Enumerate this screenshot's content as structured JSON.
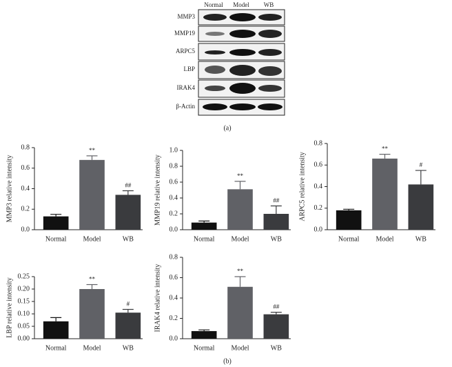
{
  "blot": {
    "lanes": [
      "Normal",
      "Model",
      "WB"
    ],
    "rows": [
      "MMP3",
      "MMP19",
      "ARPC5",
      "LBP",
      "IRAK4",
      "β-Actin"
    ],
    "label": "(a)"
  },
  "panel_b_label": "(b)",
  "chart_data": [
    {
      "type": "bar",
      "y_label": "MMP3 relative intensity",
      "categories": [
        "Normal",
        "Model",
        "WB"
      ],
      "values": [
        0.13,
        0.68,
        0.34
      ],
      "errors": [
        0.02,
        0.04,
        0.04
      ],
      "annotations": [
        null,
        "**",
        "##"
      ],
      "colors": [
        "#111111",
        "#606166",
        "#3a3b3e"
      ],
      "ylim": [
        0,
        0.8
      ],
      "yticks": [
        {
          "value": 0,
          "label": "0.0"
        },
        0.2,
        0.4,
        0.6,
        0.8
      ]
    },
    {
      "type": "bar",
      "y_label": "MMP19 relative intensity",
      "categories": [
        "Normal",
        "Model",
        "WB"
      ],
      "values": [
        0.09,
        0.51,
        0.2
      ],
      "errors": [
        0.02,
        0.1,
        0.1
      ],
      "annotations": [
        null,
        "**",
        "##"
      ],
      "colors": [
        "#111111",
        "#606166",
        "#3a3b3e"
      ],
      "ylim": [
        0,
        1.0
      ],
      "yticks": [
        {
          "value": 0,
          "label": "0.0"
        },
        0.2,
        0.4,
        0.6,
        0.8,
        {
          "value": 1,
          "label": "1.0"
        }
      ]
    },
    {
      "type": "bar",
      "y_label": "ARPC5 relative intensity",
      "categories": [
        "Normal",
        "Model",
        "WB"
      ],
      "values": [
        0.18,
        0.66,
        0.42
      ],
      "errors": [
        0.01,
        0.04,
        0.13
      ],
      "annotations": [
        null,
        "**",
        "#"
      ],
      "colors": [
        "#111111",
        "#606166",
        "#3a3b3e"
      ],
      "ylim": [
        0,
        0.8
      ],
      "yticks": [
        {
          "value": 0,
          "label": "0.0"
        },
        0.2,
        0.4,
        0.6,
        0.8
      ]
    },
    {
      "type": "bar",
      "y_label": "LBP relative intensity",
      "categories": [
        "Normal",
        "Model",
        "WB"
      ],
      "values": [
        0.07,
        0.2,
        0.105
      ],
      "errors": [
        0.015,
        0.018,
        0.013
      ],
      "annotations": [
        null,
        "**",
        "#"
      ],
      "colors": [
        "#111111",
        "#606166",
        "#3a3b3e"
      ],
      "ylim": [
        0,
        0.25
      ],
      "yticks": [
        {
          "value": 0,
          "label": "0.00"
        },
        0.05,
        {
          "value": 0.1,
          "label": "0.10"
        },
        0.15,
        {
          "value": 0.2,
          "label": "0.20"
        },
        0.25
      ]
    },
    {
      "type": "bar",
      "y_label": "IRAK4 relative intensity",
      "categories": [
        "Normal",
        "Model",
        "WB"
      ],
      "values": [
        0.075,
        0.51,
        0.24
      ],
      "errors": [
        0.012,
        0.1,
        0.02
      ],
      "annotations": [
        null,
        "**",
        "##"
      ],
      "colors": [
        "#111111",
        "#606166",
        "#3a3b3e"
      ],
      "ylim": [
        0,
        0.8
      ],
      "yticks": [
        {
          "value": 0,
          "label": "0.0"
        },
        0.2,
        0.4,
        0.6,
        0.8
      ]
    }
  ]
}
